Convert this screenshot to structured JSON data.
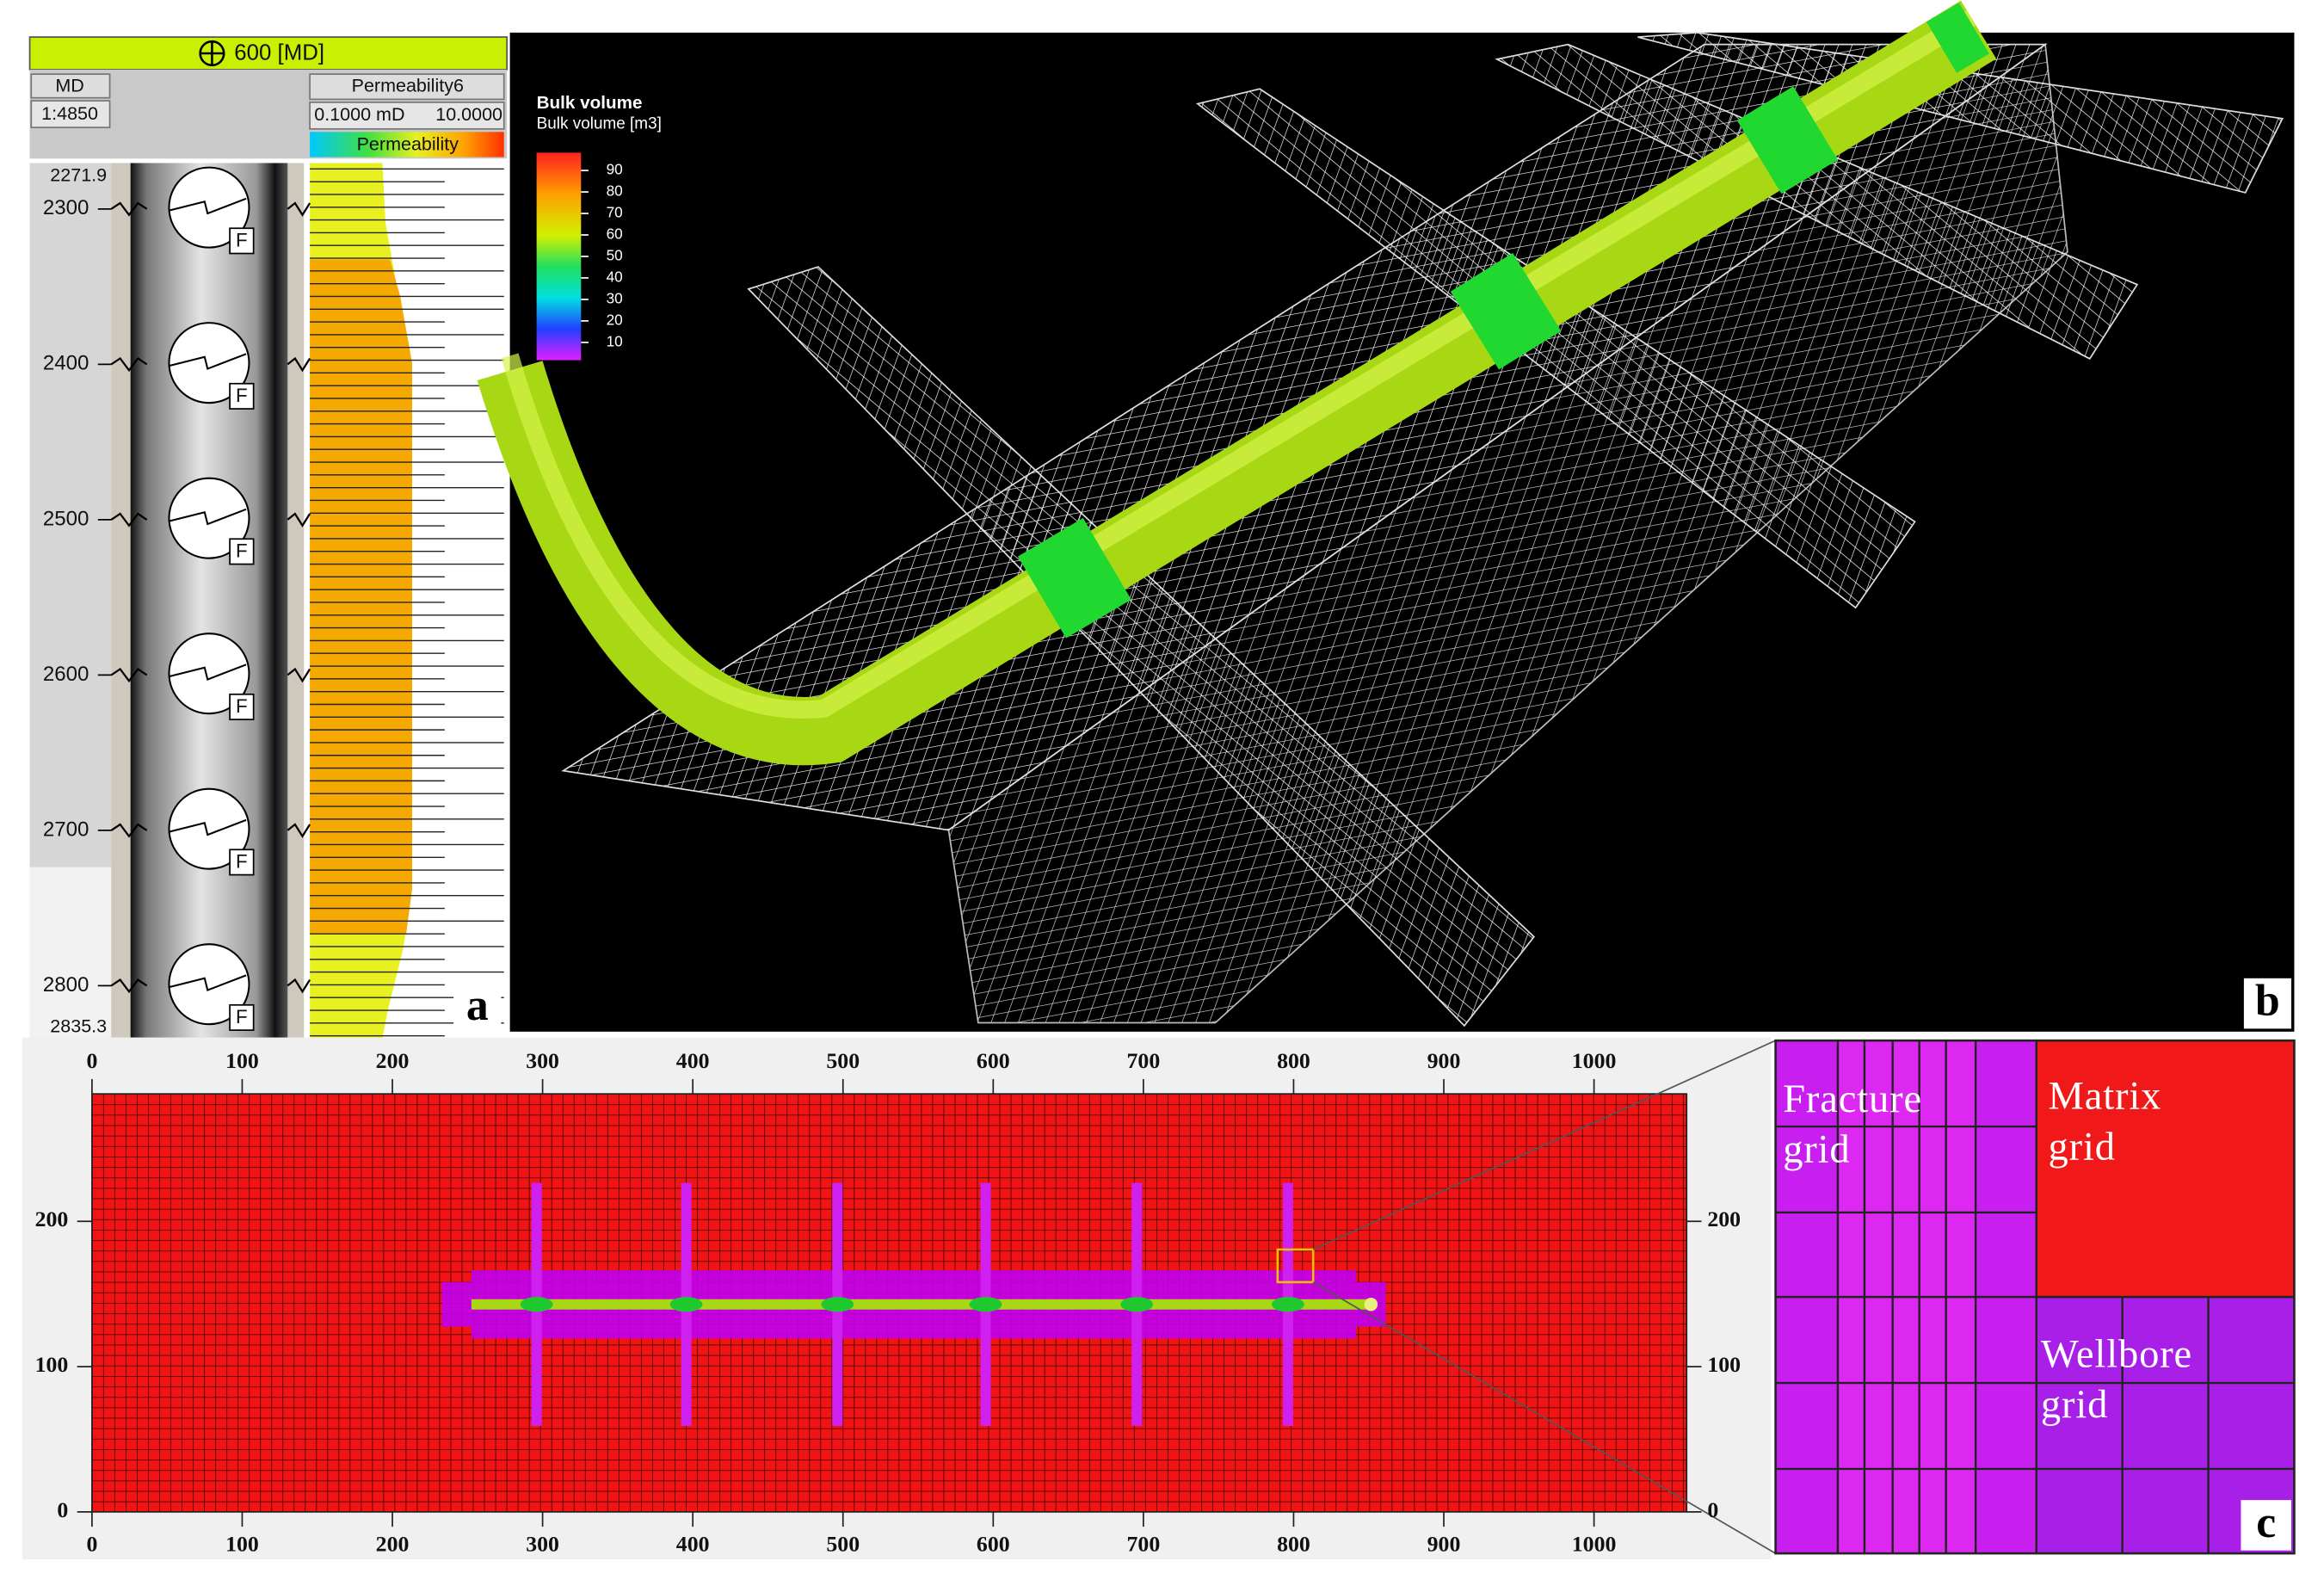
{
  "panel_a": {
    "header": "600 [MD]",
    "md_label": "MD",
    "scale": "1:4850",
    "log_name": "Permeability6",
    "log_min": "0.1000 mD",
    "log_max": "10.0000",
    "colorbar_label": "Permeability",
    "top_depth": "2271.9",
    "bottom_depth": "2835.3",
    "depths": [
      2300,
      2400,
      2500,
      2600,
      2700,
      2800
    ],
    "markers": [
      "F",
      "F",
      "F",
      "F",
      "F",
      "F"
    ],
    "label": "a"
  },
  "panel_b": {
    "legend_title": "Bulk volume",
    "legend_subtitle": "Bulk volume [m3]",
    "legend_ticks": [
      90,
      80,
      70,
      60,
      50,
      40,
      30,
      20,
      10
    ],
    "label": "b"
  },
  "panel_c": {
    "xticks": [
      0,
      100,
      200,
      300,
      400,
      500,
      600,
      700,
      800,
      900,
      1000
    ],
    "yticks": [
      0,
      100,
      200
    ],
    "fracture_label": [
      "Fracture",
      "grid"
    ],
    "matrix_label": [
      "Matrix",
      "grid"
    ],
    "wellbore_label": [
      "Wellbore",
      "grid"
    ],
    "label": "c"
  }
}
